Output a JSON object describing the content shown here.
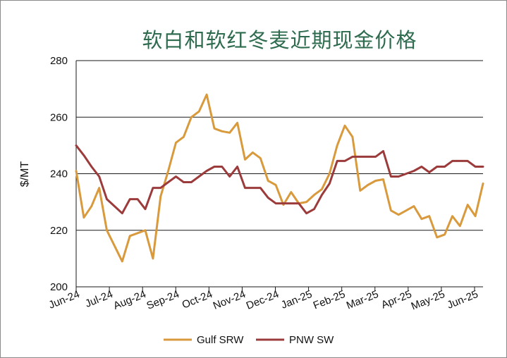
{
  "chart_data": {
    "type": "line",
    "title": "软白和软红冬麦近期现金价格",
    "ylabel": "$/MT",
    "xlabel": "",
    "ylim": [
      200,
      280
    ],
    "yticks": [
      200,
      220,
      240,
      260,
      280
    ],
    "grid": "horizontal",
    "legend_position": "bottom",
    "x_tick_labels": [
      "Jun-24",
      "Jul-24",
      "Aug-24",
      "Sep-24",
      "Oct-24",
      "Nov-24",
      "Dec-24",
      "Jan-25",
      "Feb-25",
      "Mar-25",
      "Apr-25",
      "May-25",
      "Jun-25"
    ],
    "series": [
      {
        "name": "Gulf SRW",
        "color": "#d89a3c",
        "values": [
          241.0,
          224.5,
          228.5,
          235.0,
          220.0,
          214.5,
          209.0,
          218.0,
          219.0,
          220.0,
          210.0,
          232.0,
          241.0,
          251.0,
          253.0,
          260.0,
          262.0,
          268.0,
          256.0,
          255.0,
          254.5,
          258.0,
          245.0,
          247.5,
          245.5,
          237.5,
          236.0,
          229.0,
          233.5,
          229.5,
          230.0,
          232.5,
          234.5,
          240.0,
          250.0,
          257.0,
          253.0,
          234.0,
          236.0,
          237.5,
          238.0,
          227.0,
          225.5,
          227.0,
          228.5,
          224.0,
          225.0,
          217.5,
          218.5,
          225.0,
          221.5,
          229.0,
          225.0,
          236.5
        ]
      },
      {
        "name": "PNW SW",
        "color": "#9c3b3b",
        "values": [
          250.0,
          246.5,
          242.5,
          239.0,
          231.0,
          228.5,
          226.0,
          231.0,
          231.0,
          227.5,
          235.0,
          235.0,
          237.0,
          239.0,
          237.0,
          237.0,
          239.0,
          241.0,
          242.5,
          242.5,
          239.0,
          242.5,
          235.0,
          235.0,
          235.0,
          231.5,
          229.5,
          229.5,
          229.5,
          229.5,
          226.0,
          227.5,
          232.5,
          236.5,
          244.5,
          244.5,
          246.0,
          246.0,
          246.0,
          246.0,
          248.0,
          239.0,
          239.0,
          240.0,
          241.0,
          242.5,
          240.5,
          242.5,
          242.5,
          244.5,
          244.5,
          244.5,
          242.5,
          242.5
        ]
      }
    ]
  }
}
